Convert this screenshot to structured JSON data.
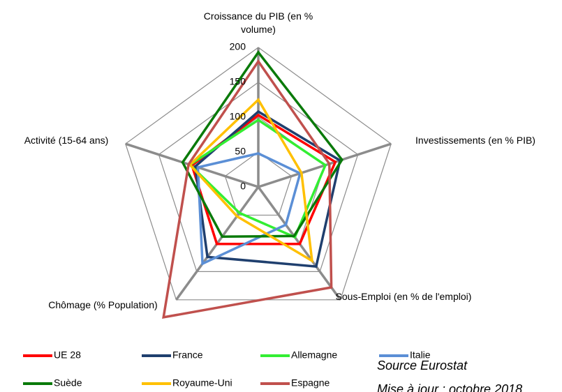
{
  "chart_data": {
    "type": "radar",
    "axes": [
      "Croissance du PIB (en % volume)",
      "Investissements (en % PIB)",
      "Sous-Emploi (en % de l'emploi)",
      "Chômage (% Population)",
      "Activité (15-64 ans)"
    ],
    "rlim": [
      0,
      200
    ],
    "rticks": [
      0,
      50,
      100,
      150,
      200
    ],
    "grid": true,
    "series": [
      {
        "name": "UE 28",
        "color": "#ff0000",
        "values": [
          103,
          116,
          101,
          101,
          100
        ]
      },
      {
        "name": "France",
        "color": "#1f3f6e",
        "values": [
          108,
          123,
          141,
          124,
          95
        ]
      },
      {
        "name": "Allemagne",
        "color": "#33ee33",
        "values": [
          96,
          101,
          89,
          46,
          103
        ]
      },
      {
        "name": "Italie",
        "color": "#5b8fd6",
        "values": [
          48,
          63,
          67,
          136,
          91
        ]
      },
      {
        "name": "Suède",
        "color": "#0a7a0a",
        "values": [
          193,
          126,
          87,
          88,
          114
        ]
      },
      {
        "name": "Royaume-Uni",
        "color": "#ffc000",
        "values": [
          125,
          65,
          131,
          52,
          103
        ]
      },
      {
        "name": "Espagne",
        "color": "#c0504d",
        "values": [
          180,
          107,
          178,
          231,
          105
        ]
      }
    ],
    "annotations": [
      "Source Eurostat",
      "Mise à jour : octobre 2018"
    ]
  }
}
